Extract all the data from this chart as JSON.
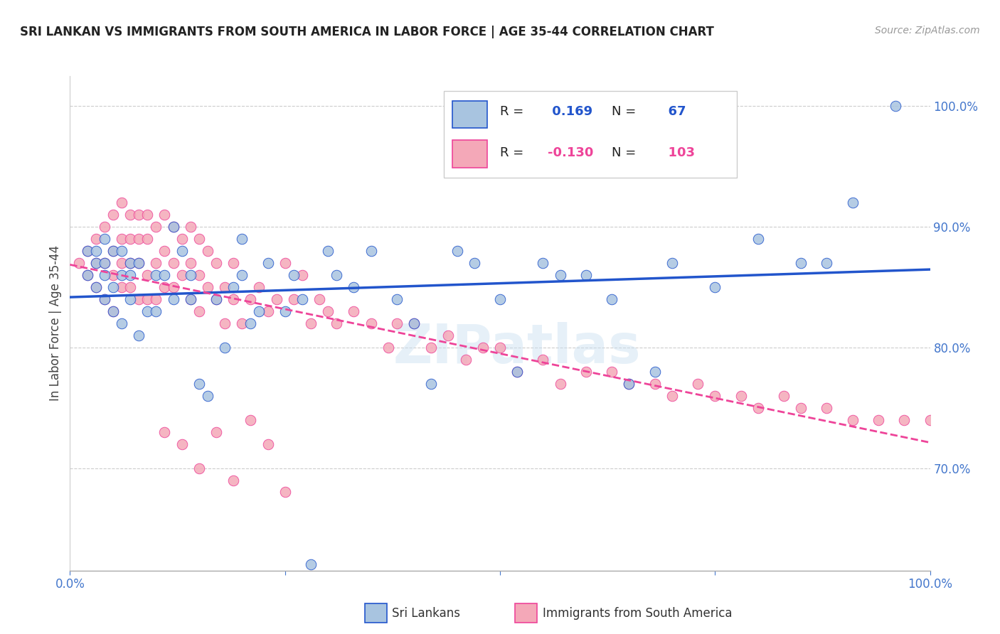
{
  "title": "SRI LANKAN VS IMMIGRANTS FROM SOUTH AMERICA IN LABOR FORCE | AGE 35-44 CORRELATION CHART",
  "source": "Source: ZipAtlas.com",
  "ylabel": "In Labor Force | Age 35-44",
  "blue_R": 0.169,
  "blue_N": 67,
  "pink_R": -0.13,
  "pink_N": 103,
  "legend_label_blue": "Sri Lankans",
  "legend_label_pink": "Immigrants from South America",
  "watermark": "ZIPatlas",
  "blue_color": "#a8c4e0",
  "pink_color": "#f4a8b8",
  "blue_line_color": "#2255cc",
  "pink_line_color": "#ee4499",
  "title_color": "#222222",
  "axis_color": "#4477cc",
  "blue_scatter_x": [
    0.02,
    0.02,
    0.03,
    0.03,
    0.04,
    0.04,
    0.04,
    0.05,
    0.05,
    0.05,
    0.06,
    0.06,
    0.06,
    0.07,
    0.07,
    0.07,
    0.08,
    0.08,
    0.09,
    0.1,
    0.1,
    0.11,
    0.12,
    0.12,
    0.13,
    0.14,
    0.14,
    0.15,
    0.16,
    0.17,
    0.18,
    0.19,
    0.2,
    0.2,
    0.21,
    0.22,
    0.23,
    0.25,
    0.26,
    0.27,
    0.28,
    0.3,
    0.31,
    0.33,
    0.35,
    0.38,
    0.4,
    0.42,
    0.45,
    0.47,
    0.5,
    0.52,
    0.55,
    0.57,
    0.6,
    0.63,
    0.65,
    0.68,
    0.7,
    0.75,
    0.8,
    0.85,
    0.88,
    0.91,
    0.96,
    0.03,
    0.04
  ],
  "blue_scatter_y": [
    0.86,
    0.88,
    0.85,
    0.87,
    0.84,
    0.86,
    0.87,
    0.83,
    0.85,
    0.88,
    0.82,
    0.86,
    0.88,
    0.84,
    0.86,
    0.87,
    0.81,
    0.87,
    0.83,
    0.83,
    0.86,
    0.86,
    0.84,
    0.9,
    0.88,
    0.86,
    0.84,
    0.77,
    0.76,
    0.84,
    0.8,
    0.85,
    0.86,
    0.89,
    0.82,
    0.83,
    0.87,
    0.83,
    0.86,
    0.84,
    0.62,
    0.88,
    0.86,
    0.85,
    0.88,
    0.84,
    0.82,
    0.77,
    0.88,
    0.87,
    0.84,
    0.78,
    0.87,
    0.86,
    0.86,
    0.84,
    0.77,
    0.78,
    0.87,
    0.85,
    0.89,
    0.87,
    0.87,
    0.92,
    1.0,
    0.88,
    0.89
  ],
  "pink_scatter_x": [
    0.01,
    0.02,
    0.02,
    0.03,
    0.03,
    0.03,
    0.04,
    0.04,
    0.04,
    0.05,
    0.05,
    0.05,
    0.05,
    0.06,
    0.06,
    0.06,
    0.06,
    0.07,
    0.07,
    0.07,
    0.07,
    0.08,
    0.08,
    0.08,
    0.08,
    0.09,
    0.09,
    0.09,
    0.09,
    0.1,
    0.1,
    0.1,
    0.11,
    0.11,
    0.11,
    0.12,
    0.12,
    0.12,
    0.13,
    0.13,
    0.14,
    0.14,
    0.14,
    0.15,
    0.15,
    0.15,
    0.16,
    0.16,
    0.17,
    0.17,
    0.18,
    0.18,
    0.19,
    0.19,
    0.2,
    0.21,
    0.22,
    0.23,
    0.24,
    0.25,
    0.26,
    0.27,
    0.28,
    0.29,
    0.3,
    0.31,
    0.33,
    0.35,
    0.37,
    0.38,
    0.4,
    0.42,
    0.44,
    0.46,
    0.48,
    0.5,
    0.52,
    0.55,
    0.57,
    0.6,
    0.63,
    0.65,
    0.68,
    0.7,
    0.73,
    0.75,
    0.78,
    0.8,
    0.83,
    0.85,
    0.88,
    0.91,
    0.94,
    0.97,
    1.0,
    0.11,
    0.13,
    0.15,
    0.17,
    0.19,
    0.21,
    0.23,
    0.25
  ],
  "pink_scatter_y": [
    0.87,
    0.86,
    0.88,
    0.85,
    0.87,
    0.89,
    0.84,
    0.87,
    0.9,
    0.83,
    0.86,
    0.88,
    0.91,
    0.85,
    0.87,
    0.89,
    0.92,
    0.85,
    0.87,
    0.89,
    0.91,
    0.84,
    0.87,
    0.89,
    0.91,
    0.84,
    0.86,
    0.89,
    0.91,
    0.84,
    0.87,
    0.9,
    0.85,
    0.88,
    0.91,
    0.85,
    0.87,
    0.9,
    0.86,
    0.89,
    0.84,
    0.87,
    0.9,
    0.83,
    0.86,
    0.89,
    0.85,
    0.88,
    0.84,
    0.87,
    0.82,
    0.85,
    0.84,
    0.87,
    0.82,
    0.84,
    0.85,
    0.83,
    0.84,
    0.87,
    0.84,
    0.86,
    0.82,
    0.84,
    0.83,
    0.82,
    0.83,
    0.82,
    0.8,
    0.82,
    0.82,
    0.8,
    0.81,
    0.79,
    0.8,
    0.8,
    0.78,
    0.79,
    0.77,
    0.78,
    0.78,
    0.77,
    0.77,
    0.76,
    0.77,
    0.76,
    0.76,
    0.75,
    0.76,
    0.75,
    0.75,
    0.74,
    0.74,
    0.74,
    0.74,
    0.73,
    0.72,
    0.7,
    0.73,
    0.69,
    0.74,
    0.72,
    0.68
  ]
}
